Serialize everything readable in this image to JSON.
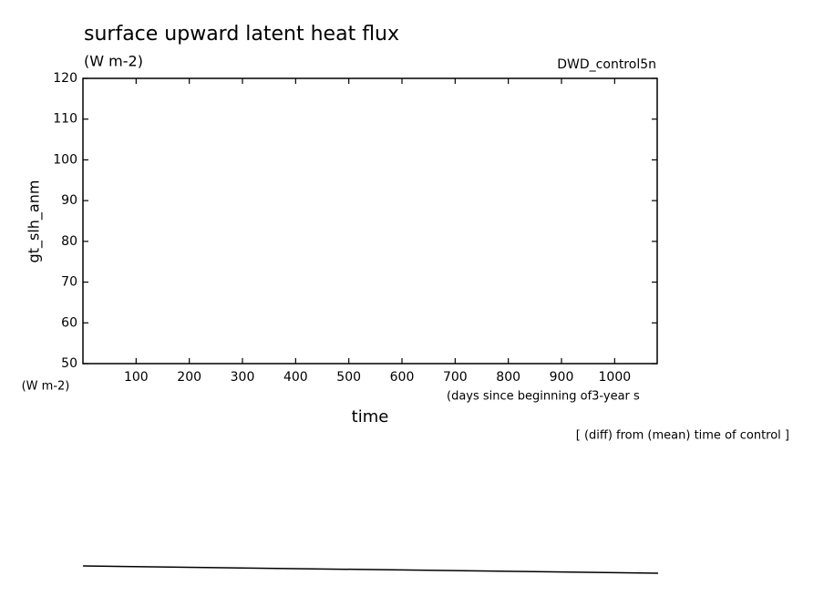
{
  "chart_data": {
    "type": "line",
    "title": "surface upward latent heat flux",
    "subtitle": "(W m-2)",
    "annotation": "DWD_control5n",
    "y_label": "gt_slh_anm",
    "y_units": "(W m-2)",
    "x_units": "(days since beginning of3-year s",
    "x_label": "time",
    "note": "[ (diff) from (mean) time of control ]",
    "xlim": [
      0,
      1080
    ],
    "xticks": [
      100,
      200,
      300,
      400,
      500,
      600,
      700,
      800,
      900,
      1000
    ],
    "ylim": [
      50,
      120
    ],
    "yticks": [
      50,
      60,
      70,
      80,
      90,
      100,
      110,
      120
    ]
  }
}
